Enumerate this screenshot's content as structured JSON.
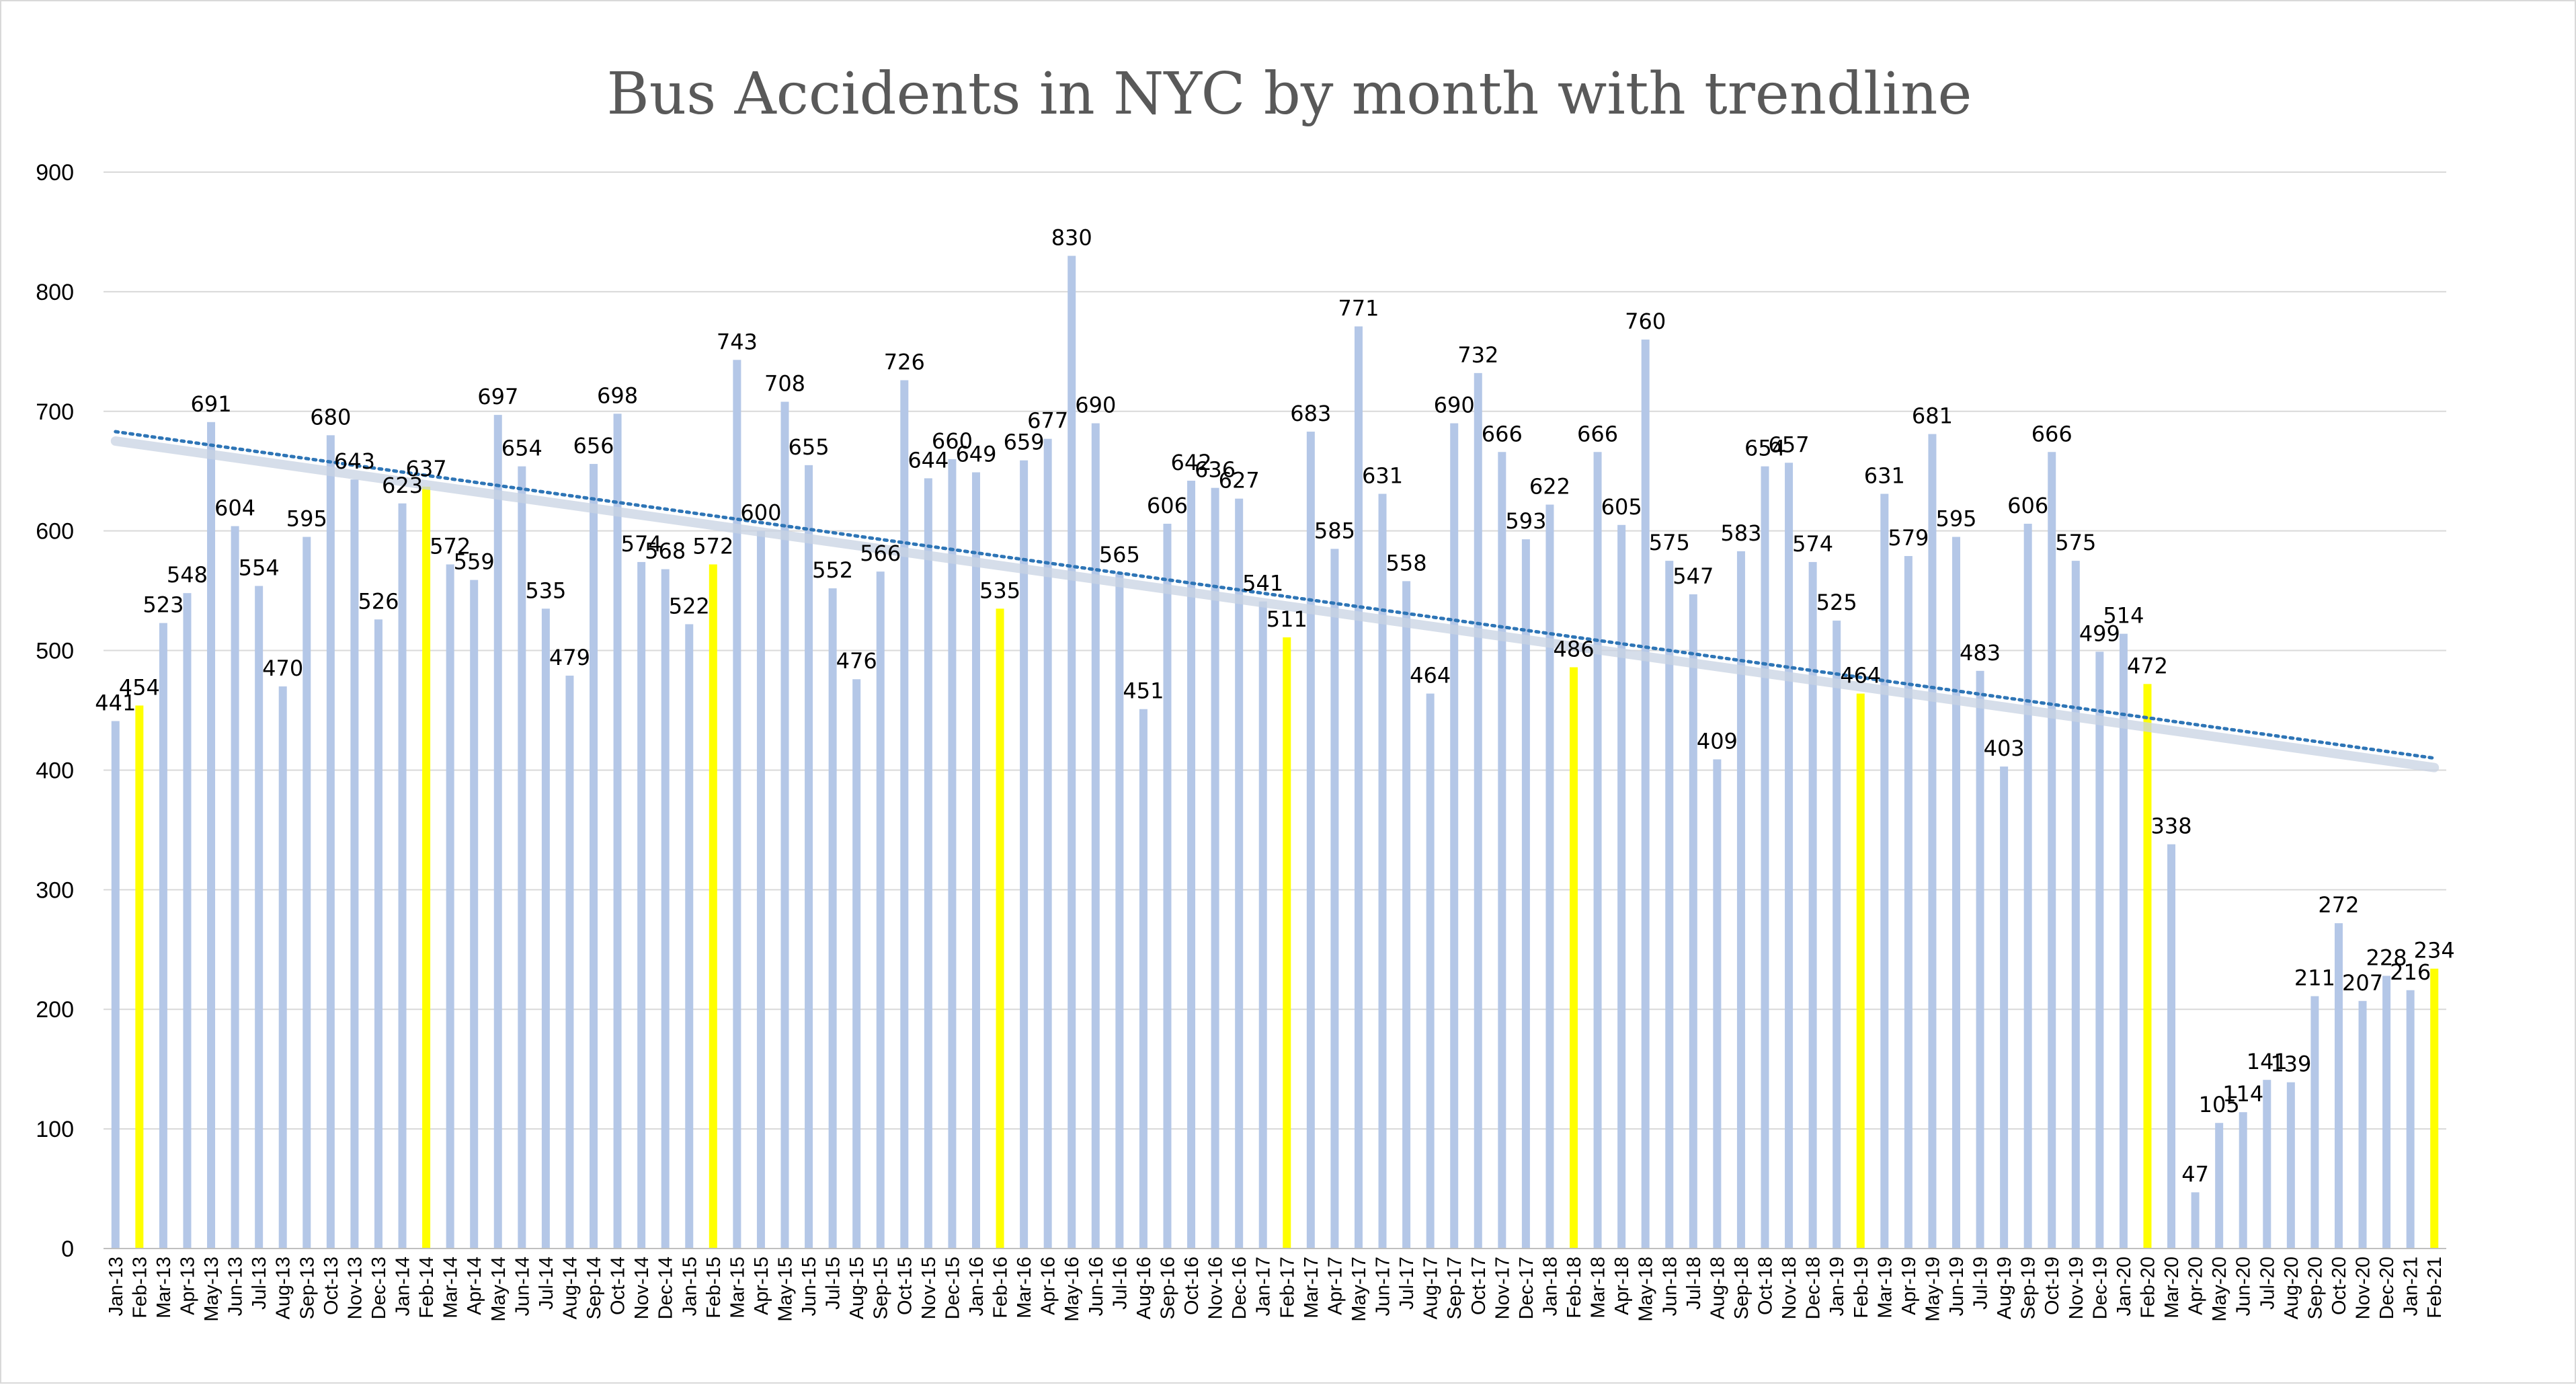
{
  "chart_data": {
    "type": "bar",
    "title": "Bus Accidents in NYC by month with trendline",
    "xlabel": "",
    "ylabel": "",
    "ylim": [
      0,
      900
    ],
    "yticks": [
      0,
      100,
      200,
      300,
      400,
      500,
      600,
      700,
      800,
      900
    ],
    "grid": true,
    "legend": "none",
    "trendline": {
      "type": "linear",
      "style": "dotted",
      "start_value": 683,
      "end_value": 410
    },
    "colors": {
      "bar": "#b4c7e7",
      "highlight": "#ffff00",
      "trendline": "#2e75b6",
      "grid": "#d9d9d9"
    },
    "categories": [
      "Jan-13",
      "Feb-13",
      "Mar-13",
      "Apr-13",
      "May-13",
      "Jun-13",
      "Jul-13",
      "Aug-13",
      "Sep-13",
      "Oct-13",
      "Nov-13",
      "Dec-13",
      "Jan-14",
      "Feb-14",
      "Mar-14",
      "Apr-14",
      "May-14",
      "Jun-14",
      "Jul-14",
      "Aug-14",
      "Sep-14",
      "Oct-14",
      "Nov-14",
      "Dec-14",
      "Jan-15",
      "Feb-15",
      "Mar-15",
      "Apr-15",
      "May-15",
      "Jun-15",
      "Jul-15",
      "Aug-15",
      "Sep-15",
      "Oct-15",
      "Nov-15",
      "Dec-15",
      "Jan-16",
      "Feb-16",
      "Mar-16",
      "Apr-16",
      "May-16",
      "Jun-16",
      "Jul-16",
      "Aug-16",
      "Sep-16",
      "Oct-16",
      "Nov-16",
      "Dec-16",
      "Jan-17",
      "Feb-17",
      "Mar-17",
      "Apr-17",
      "May-17",
      "Jun-17",
      "Jul-17",
      "Aug-17",
      "Sep-17",
      "Oct-17",
      "Nov-17",
      "Dec-17",
      "Jan-18",
      "Feb-18",
      "Mar-18",
      "Apr-18",
      "May-18",
      "Jun-18",
      "Jul-18",
      "Aug-18",
      "Sep-18",
      "Oct-18",
      "Nov-18",
      "Dec-18",
      "Jan-19",
      "Feb-19",
      "Mar-19",
      "Apr-19",
      "May-19",
      "Jun-19",
      "Jul-19",
      "Aug-19",
      "Sep-19",
      "Oct-19",
      "Nov-19",
      "Dec-19",
      "Jan-20",
      "Feb-20",
      "Mar-20",
      "Apr-20",
      "May-20",
      "Jun-20",
      "Jul-20",
      "Aug-20",
      "Sep-20",
      "Oct-20",
      "Nov-20",
      "Dec-20",
      "Jan-21",
      "Feb-21"
    ],
    "values": [
      441,
      454,
      523,
      548,
      691,
      604,
      554,
      470,
      595,
      680,
      643,
      526,
      623,
      637,
      572,
      559,
      697,
      654,
      535,
      479,
      656,
      698,
      574,
      568,
      522,
      572,
      743,
      600,
      708,
      655,
      552,
      476,
      566,
      726,
      644,
      660,
      649,
      535,
      659,
      677,
      830,
      690,
      565,
      451,
      606,
      642,
      636,
      627,
      541,
      511,
      683,
      585,
      771,
      631,
      558,
      464,
      690,
      732,
      666,
      593,
      622,
      486,
      666,
      605,
      760,
      575,
      547,
      409,
      583,
      654,
      657,
      574,
      525,
      464,
      631,
      579,
      681,
      595,
      483,
      403,
      606,
      666,
      575,
      499,
      514,
      472,
      338,
      47,
      105,
      114,
      141,
      139,
      211,
      272,
      207,
      228,
      216,
      234
    ],
    "highlighted_categories": [
      "Feb-13",
      "Feb-14",
      "Feb-15",
      "Feb-16",
      "Feb-17",
      "Feb-18",
      "Feb-19",
      "Feb-20",
      "Feb-21"
    ]
  }
}
